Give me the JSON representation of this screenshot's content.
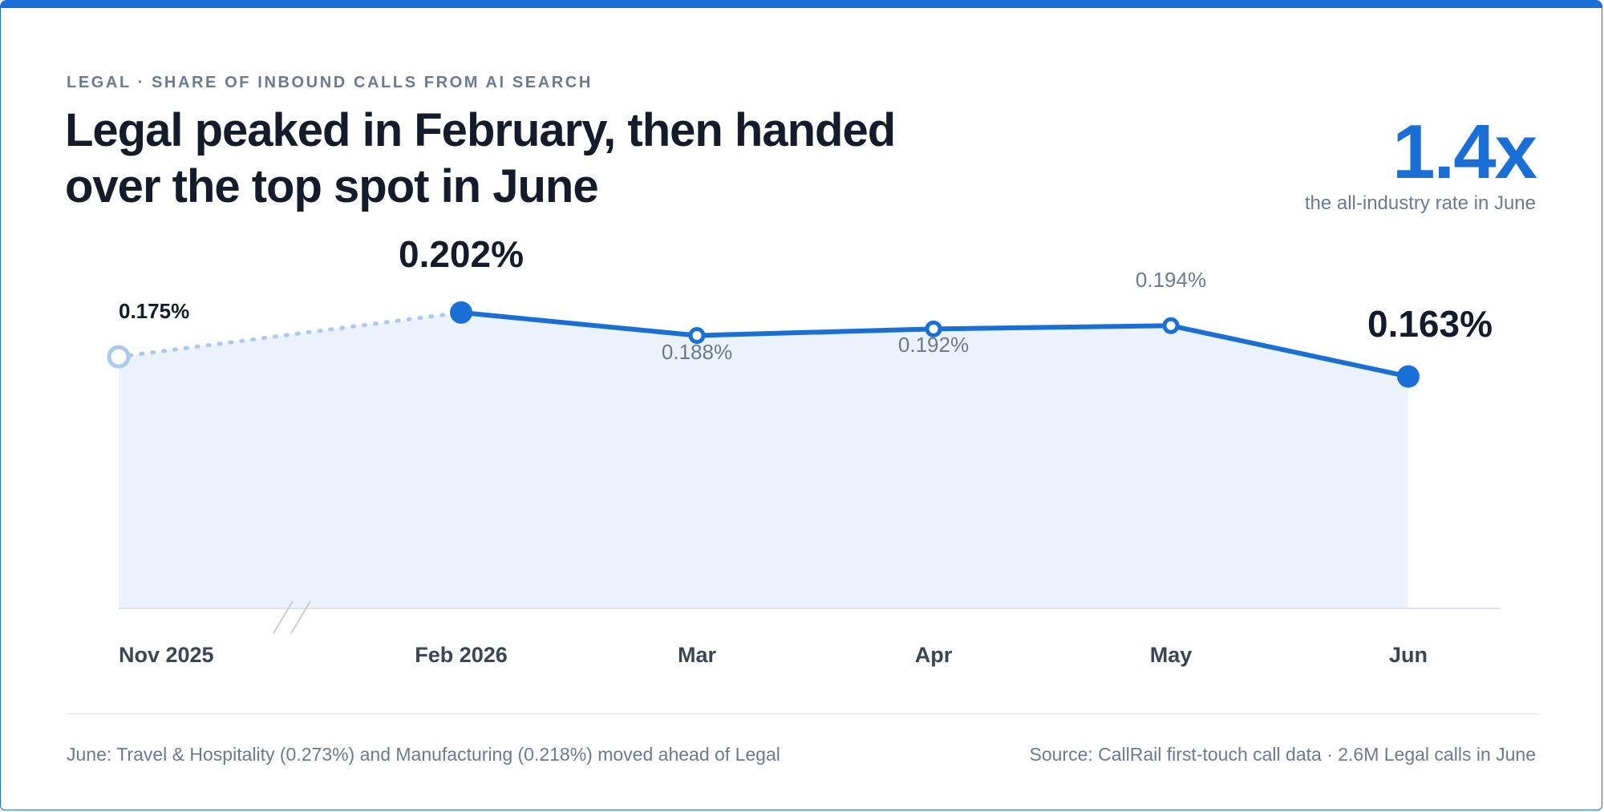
{
  "eyebrow": "LEGAL · SHARE OF INBOUND CALLS FROM AI SEARCH",
  "kpi": {
    "value": "1.4x",
    "caption": "the all-industry rate in June"
  },
  "footer": {
    "note": "June: Travel & Hospitality (0.273%) and Manufacturing (0.218%) moved ahead of Legal",
    "source": "Source: CallRail first-touch call data · 2.6M Legal calls in June"
  },
  "colors": {
    "accent": "#1a6fd6",
    "accent_light": "#a9c9ee",
    "area_fill": "#ebf2fb",
    "text_dark": "#141c2b",
    "text_muted": "#6b7a90"
  },
  "chart_data": {
    "type": "line",
    "title": "Legal peaked in February, then handed over the top spot in June",
    "categories": [
      "Nov 2025",
      "Feb 2026",
      "Mar",
      "Apr",
      "May",
      "Jun"
    ],
    "values": [
      0.175,
      0.202,
      0.188,
      0.192,
      0.194,
      0.163
    ],
    "labels": [
      "0.175%",
      "0.202%",
      "0.188%",
      "0.192%",
      "0.194%",
      "0.163%"
    ],
    "highlighted": [
      "Feb 2026",
      "Jun"
    ],
    "axis_break_after": "Nov 2025",
    "unit": "%",
    "area_fill": true,
    "grid": false,
    "legend": "none"
  }
}
